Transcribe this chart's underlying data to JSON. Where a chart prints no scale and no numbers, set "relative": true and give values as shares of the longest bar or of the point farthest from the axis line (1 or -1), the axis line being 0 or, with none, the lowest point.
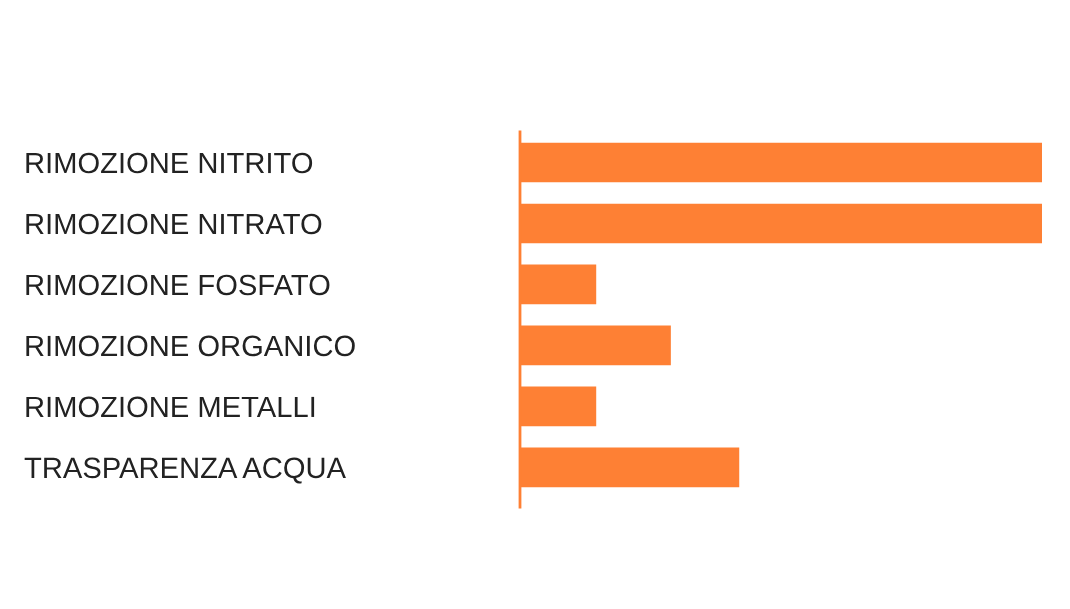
{
  "chart_data": {
    "type": "bar",
    "orientation": "horizontal",
    "relative": true,
    "categories": [
      "RIMOZIONE NITRITO",
      "RIMOZIONE NITRATO",
      "RIMOZIONE FOSFATO",
      "RIMOZIONE ORGANICO",
      "RIMOZIONE METALLI",
      "TRASPARENZA ACQUA"
    ],
    "values": [
      1,
      1,
      0.146,
      0.289,
      0.146,
      0.42
    ],
    "color": "#fe8034",
    "grid": false,
    "legend": false
  }
}
